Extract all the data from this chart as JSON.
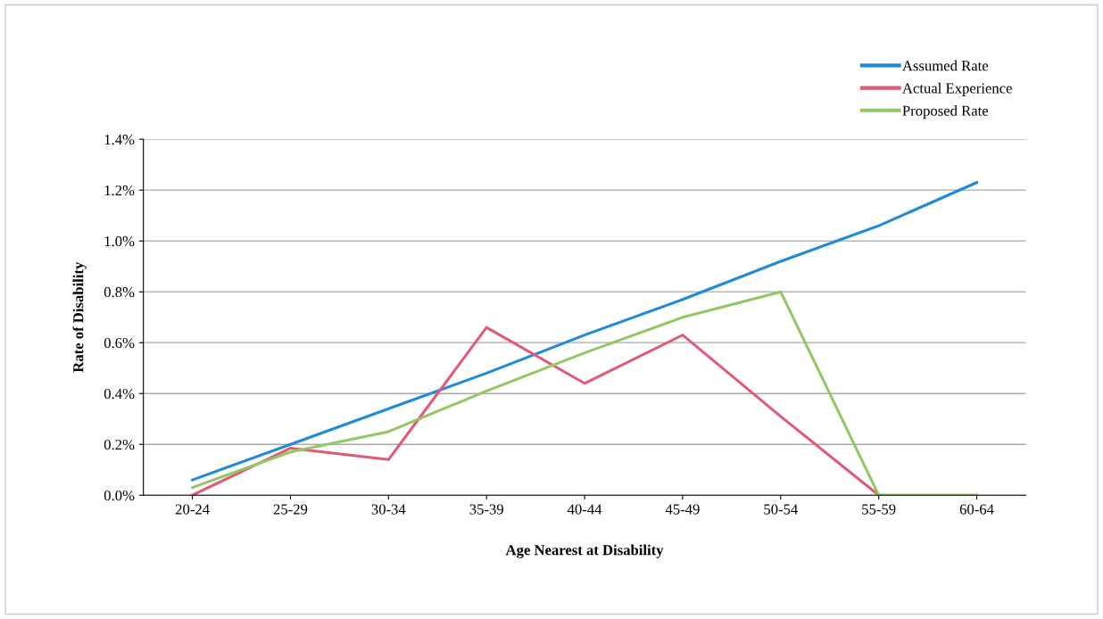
{
  "chart_data": {
    "type": "line",
    "xlabel": "Age Nearest at Disability",
    "ylabel": "Rate of Disability",
    "categories": [
      "20-24",
      "25-29",
      "30-34",
      "35-39",
      "40-44",
      "45-49",
      "50-54",
      "55-59",
      "60-64"
    ],
    "series": [
      {
        "name": "Assumed Rate",
        "color": "#1f8ad8",
        "values": [
          0.06,
          0.2,
          0.34,
          0.48,
          0.63,
          0.77,
          0.92,
          1.06,
          1.23
        ]
      },
      {
        "name": "Actual Experience",
        "color": "#e05a78",
        "values": [
          0.0,
          0.185,
          0.14,
          0.66,
          0.44,
          0.63,
          0.31,
          0.0,
          0.0
        ]
      },
      {
        "name": "Proposed Rate",
        "color": "#93c664",
        "values": [
          0.03,
          0.17,
          0.25,
          0.41,
          0.56,
          0.7,
          0.8,
          0.0,
          0.0
        ]
      }
    ],
    "ylim": [
      0,
      1.4
    ],
    "yticks": [
      {
        "value": 0,
        "label": "0.0%"
      },
      {
        "value": 0.2,
        "label": "0.2%"
      },
      {
        "value": 0.4,
        "label": "0.4%"
      },
      {
        "value": 0.6,
        "label": "0.6%"
      },
      {
        "value": 0.8,
        "label": "0.8%"
      },
      {
        "value": 1.0,
        "label": "1.0%"
      },
      {
        "value": 1.2,
        "label": "1.2%"
      },
      {
        "value": 1.4,
        "label": "1.4%"
      }
    ],
    "grid": "y",
    "legend": "top right",
    "marker": "none",
    "line_style": "solid"
  }
}
